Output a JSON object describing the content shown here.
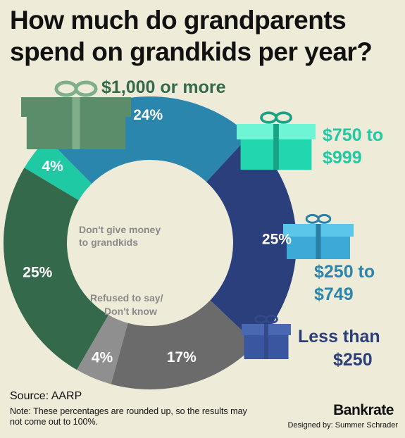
{
  "title": "How much do grandparents spend on grandkids per year?",
  "source": "Source: AARP",
  "note": "Note: These percentages are rounded up, so the results may not come out to 100%.",
  "brand": "Bankrate",
  "credit": "Designed by: Summer Schrader",
  "chart_data": {
    "type": "pie",
    "title": "How much do grandparents spend on grandkids per year?",
    "slices": [
      {
        "label": "$1,000 or more",
        "value": 25,
        "display": "25%",
        "color": "#346a4b"
      },
      {
        "label": "$750 to $999",
        "value": 4,
        "display": "4%",
        "color": "#1ec9a3"
      },
      {
        "label": "$250 to $749",
        "value": 24,
        "display": "24%",
        "color": "#2a86ad"
      },
      {
        "label": "Less than $250",
        "value": 25,
        "display": "25%",
        "color": "#2b3f7d"
      },
      {
        "label": "Refused to say/ Don't know",
        "value": 17,
        "display": "17%",
        "color": "#6b6b6b"
      },
      {
        "label": "Don't give money to grandkids",
        "value": 4,
        "display": "4%",
        "color": "#8f8f8f"
      }
    ],
    "labels": {
      "s1000": [
        "$1,000 or more"
      ],
      "s750": [
        "$750 to",
        "$999"
      ],
      "s250": [
        "$250 to",
        "$749"
      ],
      "slt250": [
        "Less than",
        "$250"
      ],
      "refused": [
        "Refused to say/",
        "Don't know"
      ],
      "dontgive": [
        "Don't give money",
        "to grandkids"
      ]
    },
    "label_colors": {
      "s1000": "#346a4b",
      "s750": "#1ec9a3",
      "s250": "#2a86ad",
      "slt250": "#2b3f7d"
    }
  },
  "gifts": [
    {
      "name": "gift-icon-1000",
      "box": "#5a8d69",
      "lid": "#5a8d69",
      "ribbon": "#7fae8a"
    },
    {
      "name": "gift-icon-750",
      "box": "#22d6b0",
      "lid": "#6ef5d6",
      "ribbon": "#19a386"
    },
    {
      "name": "gift-icon-250",
      "box": "#3ba9d6",
      "lid": "#5cc6ea",
      "ribbon": "#2a7fa6"
    },
    {
      "name": "gift-icon-lt250",
      "box": "#3a56a0",
      "lid": "#4a68b2",
      "ribbon": "#33498a"
    }
  ]
}
